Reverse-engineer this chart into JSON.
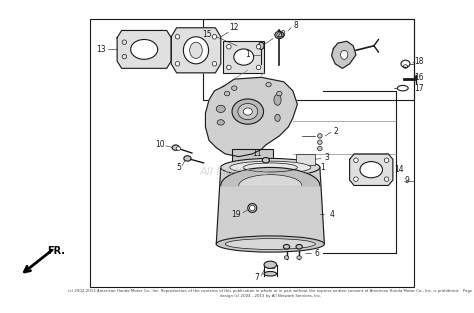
{
  "bg_color": "#ffffff",
  "line_color": "#1a1a1a",
  "gray_fill": "#c8c8c8",
  "light_gray": "#e0e0e0",
  "mid_gray": "#aaaaaa",
  "watermark_color": "#bbbbbb",
  "label_fs": 5.5,
  "lw_main": 0.8,
  "lw_thin": 0.5,
  "copyright": "(c) 2002-2013 American Honda Motor Co., Inc. Reproduction of the contents of this publication in whole or in part without the express written consent of American Honda Motor Co., Inc. is prohibited.   Page design (c) 2004 - 2013 by All Network Services, Inc."
}
